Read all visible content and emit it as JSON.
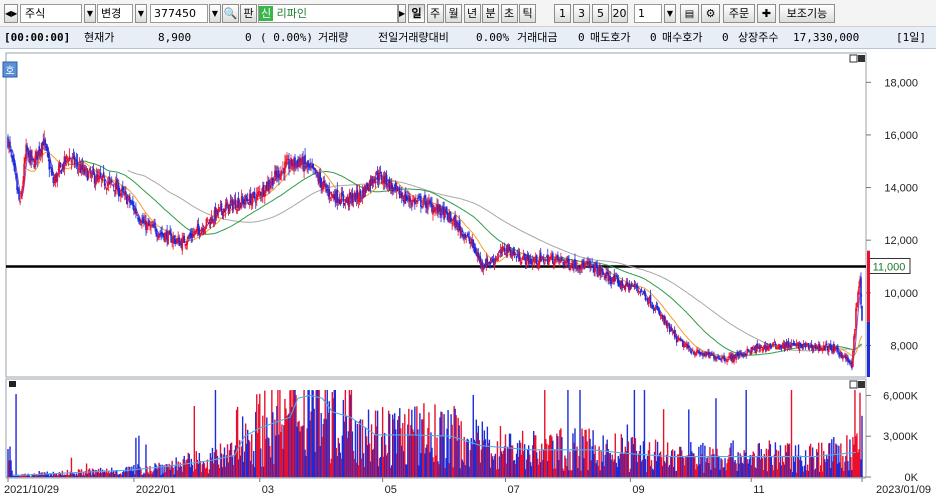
{
  "toolbar": {
    "market_select": "주식",
    "change_button": "변경",
    "code_input": "377450",
    "lock_button": "판",
    "stock_badge": "신",
    "stock_name": "리파인",
    "period_buttons": [
      "일",
      "주",
      "월",
      "년",
      "분",
      "초",
      "틱"
    ],
    "count_buttons": [
      "1",
      "3",
      "5",
      "20"
    ],
    "count_input": "1",
    "order_button": "주문",
    "aux_button": "보조기능"
  },
  "infobar": {
    "time": "[00:00:00]",
    "price_label": "현재가",
    "price": "8,900",
    "change": "0",
    "change_pct": "( 0.00%)",
    "volume_label": "거래량",
    "prev_volume_label": "전일거래량대비",
    "prev_volume_pct": "0.00%",
    "amount_label": "거래대금",
    "amount": "0",
    "ask_label": "매도호가",
    "ask": "0",
    "bid_label": "매수호가",
    "bid": "0",
    "shares_label": "상장주수",
    "shares": "17,330,000",
    "period_tag": "[1일]"
  },
  "colors": {
    "up": "#e8112d",
    "down": "#1d2bd8",
    "ma5": "#7b57d6",
    "ma20": "#f0a030",
    "ma60": "#2f9c4a",
    "ma120": "#a8a8a8",
    "volume_line": "#58a8e8",
    "hline": "#000000"
  },
  "chart_data": {
    "type": "candlestick",
    "price_axis": [
      "18,000",
      "16,000",
      "14,000",
      "12,000",
      "10,000",
      "8,000"
    ],
    "price_ylim": [
      6800,
      19000
    ],
    "hline_value": 11000,
    "hline_label": "11,000",
    "volume_axis": [
      "6,000K",
      "3,000K",
      "0K"
    ],
    "volume_ylim": [
      0,
      6400000
    ],
    "x_labels": [
      "2021/10/29",
      "2022/01",
      "03",
      "05",
      "07",
      "09",
      "11",
      "2023/01/09"
    ],
    "panel_badge": "호",
    "series_anchor_close": [
      [
        0,
        15800
      ],
      [
        5,
        14800
      ],
      [
        12,
        13300
      ],
      [
        18,
        15400
      ],
      [
        25,
        14900
      ],
      [
        35,
        15800
      ],
      [
        45,
        14200
      ],
      [
        60,
        15200
      ],
      [
        75,
        14600
      ],
      [
        90,
        14300
      ],
      [
        105,
        14100
      ],
      [
        120,
        13500
      ],
      [
        135,
        12600
      ],
      [
        155,
        12200
      ],
      [
        172,
        11900
      ],
      [
        190,
        12400
      ],
      [
        210,
        13100
      ],
      [
        225,
        13400
      ],
      [
        245,
        13600
      ],
      [
        260,
        14200
      ],
      [
        275,
        14800
      ],
      [
        290,
        15000
      ],
      [
        305,
        14500
      ],
      [
        318,
        13800
      ],
      [
        335,
        13500
      ],
      [
        350,
        13700
      ],
      [
        365,
        14500
      ],
      [
        375,
        14300
      ],
      [
        385,
        13800
      ],
      [
        400,
        13500
      ],
      [
        415,
        13400
      ],
      [
        430,
        13100
      ],
      [
        445,
        12600
      ],
      [
        460,
        11900
      ],
      [
        470,
        11100
      ],
      [
        480,
        11200
      ],
      [
        495,
        11700
      ],
      [
        505,
        11400
      ],
      [
        520,
        11200
      ],
      [
        540,
        11300
      ],
      [
        560,
        11100
      ],
      [
        580,
        11000
      ],
      [
        595,
        10600
      ],
      [
        610,
        10300
      ],
      [
        625,
        10200
      ],
      [
        635,
        9800
      ],
      [
        645,
        9300
      ],
      [
        655,
        8700
      ],
      [
        665,
        8200
      ],
      [
        675,
        7900
      ],
      [
        685,
        7700
      ],
      [
        700,
        7600
      ],
      [
        715,
        7500
      ],
      [
        730,
        7700
      ],
      [
        745,
        7900
      ],
      [
        760,
        8000
      ],
      [
        780,
        8000
      ],
      [
        800,
        7950
      ],
      [
        818,
        7900
      ],
      [
        830,
        7600
      ],
      [
        838,
        7200
      ],
      [
        842,
        9300
      ],
      [
        846,
        10500
      ],
      [
        848,
        8900
      ]
    ],
    "volume_anchor_ma": [
      [
        5,
        100000
      ],
      [
        60,
        300000
      ],
      [
        120,
        500000
      ],
      [
        160,
        800000
      ],
      [
        200,
        1200000
      ],
      [
        225,
        1600000
      ],
      [
        235,
        3000000
      ],
      [
        250,
        3600000
      ],
      [
        265,
        4000000
      ],
      [
        280,
        4400000
      ],
      [
        288,
        5800000
      ],
      [
        300,
        6000000
      ],
      [
        312,
        5800000
      ],
      [
        322,
        4800000
      ],
      [
        340,
        4400000
      ],
      [
        365,
        3100000
      ],
      [
        400,
        3100000
      ],
      [
        440,
        3000000
      ],
      [
        470,
        2300000
      ],
      [
        520,
        2000000
      ],
      [
        580,
        2000000
      ],
      [
        620,
        1700000
      ],
      [
        660,
        1500000
      ],
      [
        700,
        1500000
      ],
      [
        760,
        1500000
      ],
      [
        800,
        1500000
      ],
      [
        840,
        1800000
      ]
    ],
    "volume_spikes": [
      [
        8,
        6100000
      ],
      [
        842,
        3000000
      ],
      [
        846,
        6200000
      ],
      [
        848,
        4500000
      ]
    ],
    "ma_periods": [
      5,
      20,
      60,
      120
    ]
  }
}
